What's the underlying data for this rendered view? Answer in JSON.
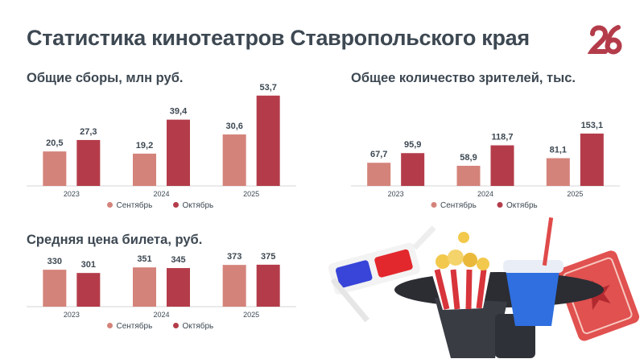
{
  "title": "Статистика кинотеатров Ставропольского края",
  "logo_text": "26",
  "colors": {
    "september": "#d4837a",
    "october": "#b43c4a",
    "text": "#3d4852",
    "axis": "#dddddd"
  },
  "chart_data": [
    {
      "type": "bar",
      "title": "Общие сборы, млн руб.",
      "categories": [
        "2023",
        "2024",
        "2025"
      ],
      "series": [
        {
          "name": "Сентябрь",
          "values": [
            20.5,
            19.2,
            30.6
          ],
          "labels": [
            "20,5",
            "19,2",
            "30,6"
          ]
        },
        {
          "name": "Октябрь",
          "values": [
            27.3,
            39.4,
            53.7
          ],
          "labels": [
            "27,3",
            "39,4",
            "53,7"
          ]
        }
      ],
      "legend": "bottom-center"
    },
    {
      "type": "bar",
      "title": "Общее количество зрителей, тыс.",
      "categories": [
        "2023",
        "2024",
        "2025"
      ],
      "series": [
        {
          "name": "Сентябрь",
          "values": [
            67.7,
            58.9,
            81.1
          ],
          "labels": [
            "67,7",
            "58,9",
            "81,1"
          ]
        },
        {
          "name": "Октябрь",
          "values": [
            95.9,
            118.7,
            153.1
          ],
          "labels": [
            "95,9",
            "118,7",
            "153,1"
          ]
        }
      ],
      "legend": "bottom-center"
    },
    {
      "type": "bar",
      "title": "Средняя цена билета, руб.",
      "categories": [
        "2023",
        "2024",
        "2025"
      ],
      "series": [
        {
          "name": "Сентябрь",
          "values": [
            330,
            351,
            373
          ],
          "labels": [
            "330",
            "351",
            "373"
          ]
        },
        {
          "name": "Октябрь",
          "values": [
            301,
            345,
            375
          ],
          "labels": [
            "301",
            "345",
            "375"
          ]
        }
      ],
      "legend": "bottom-center"
    }
  ]
}
